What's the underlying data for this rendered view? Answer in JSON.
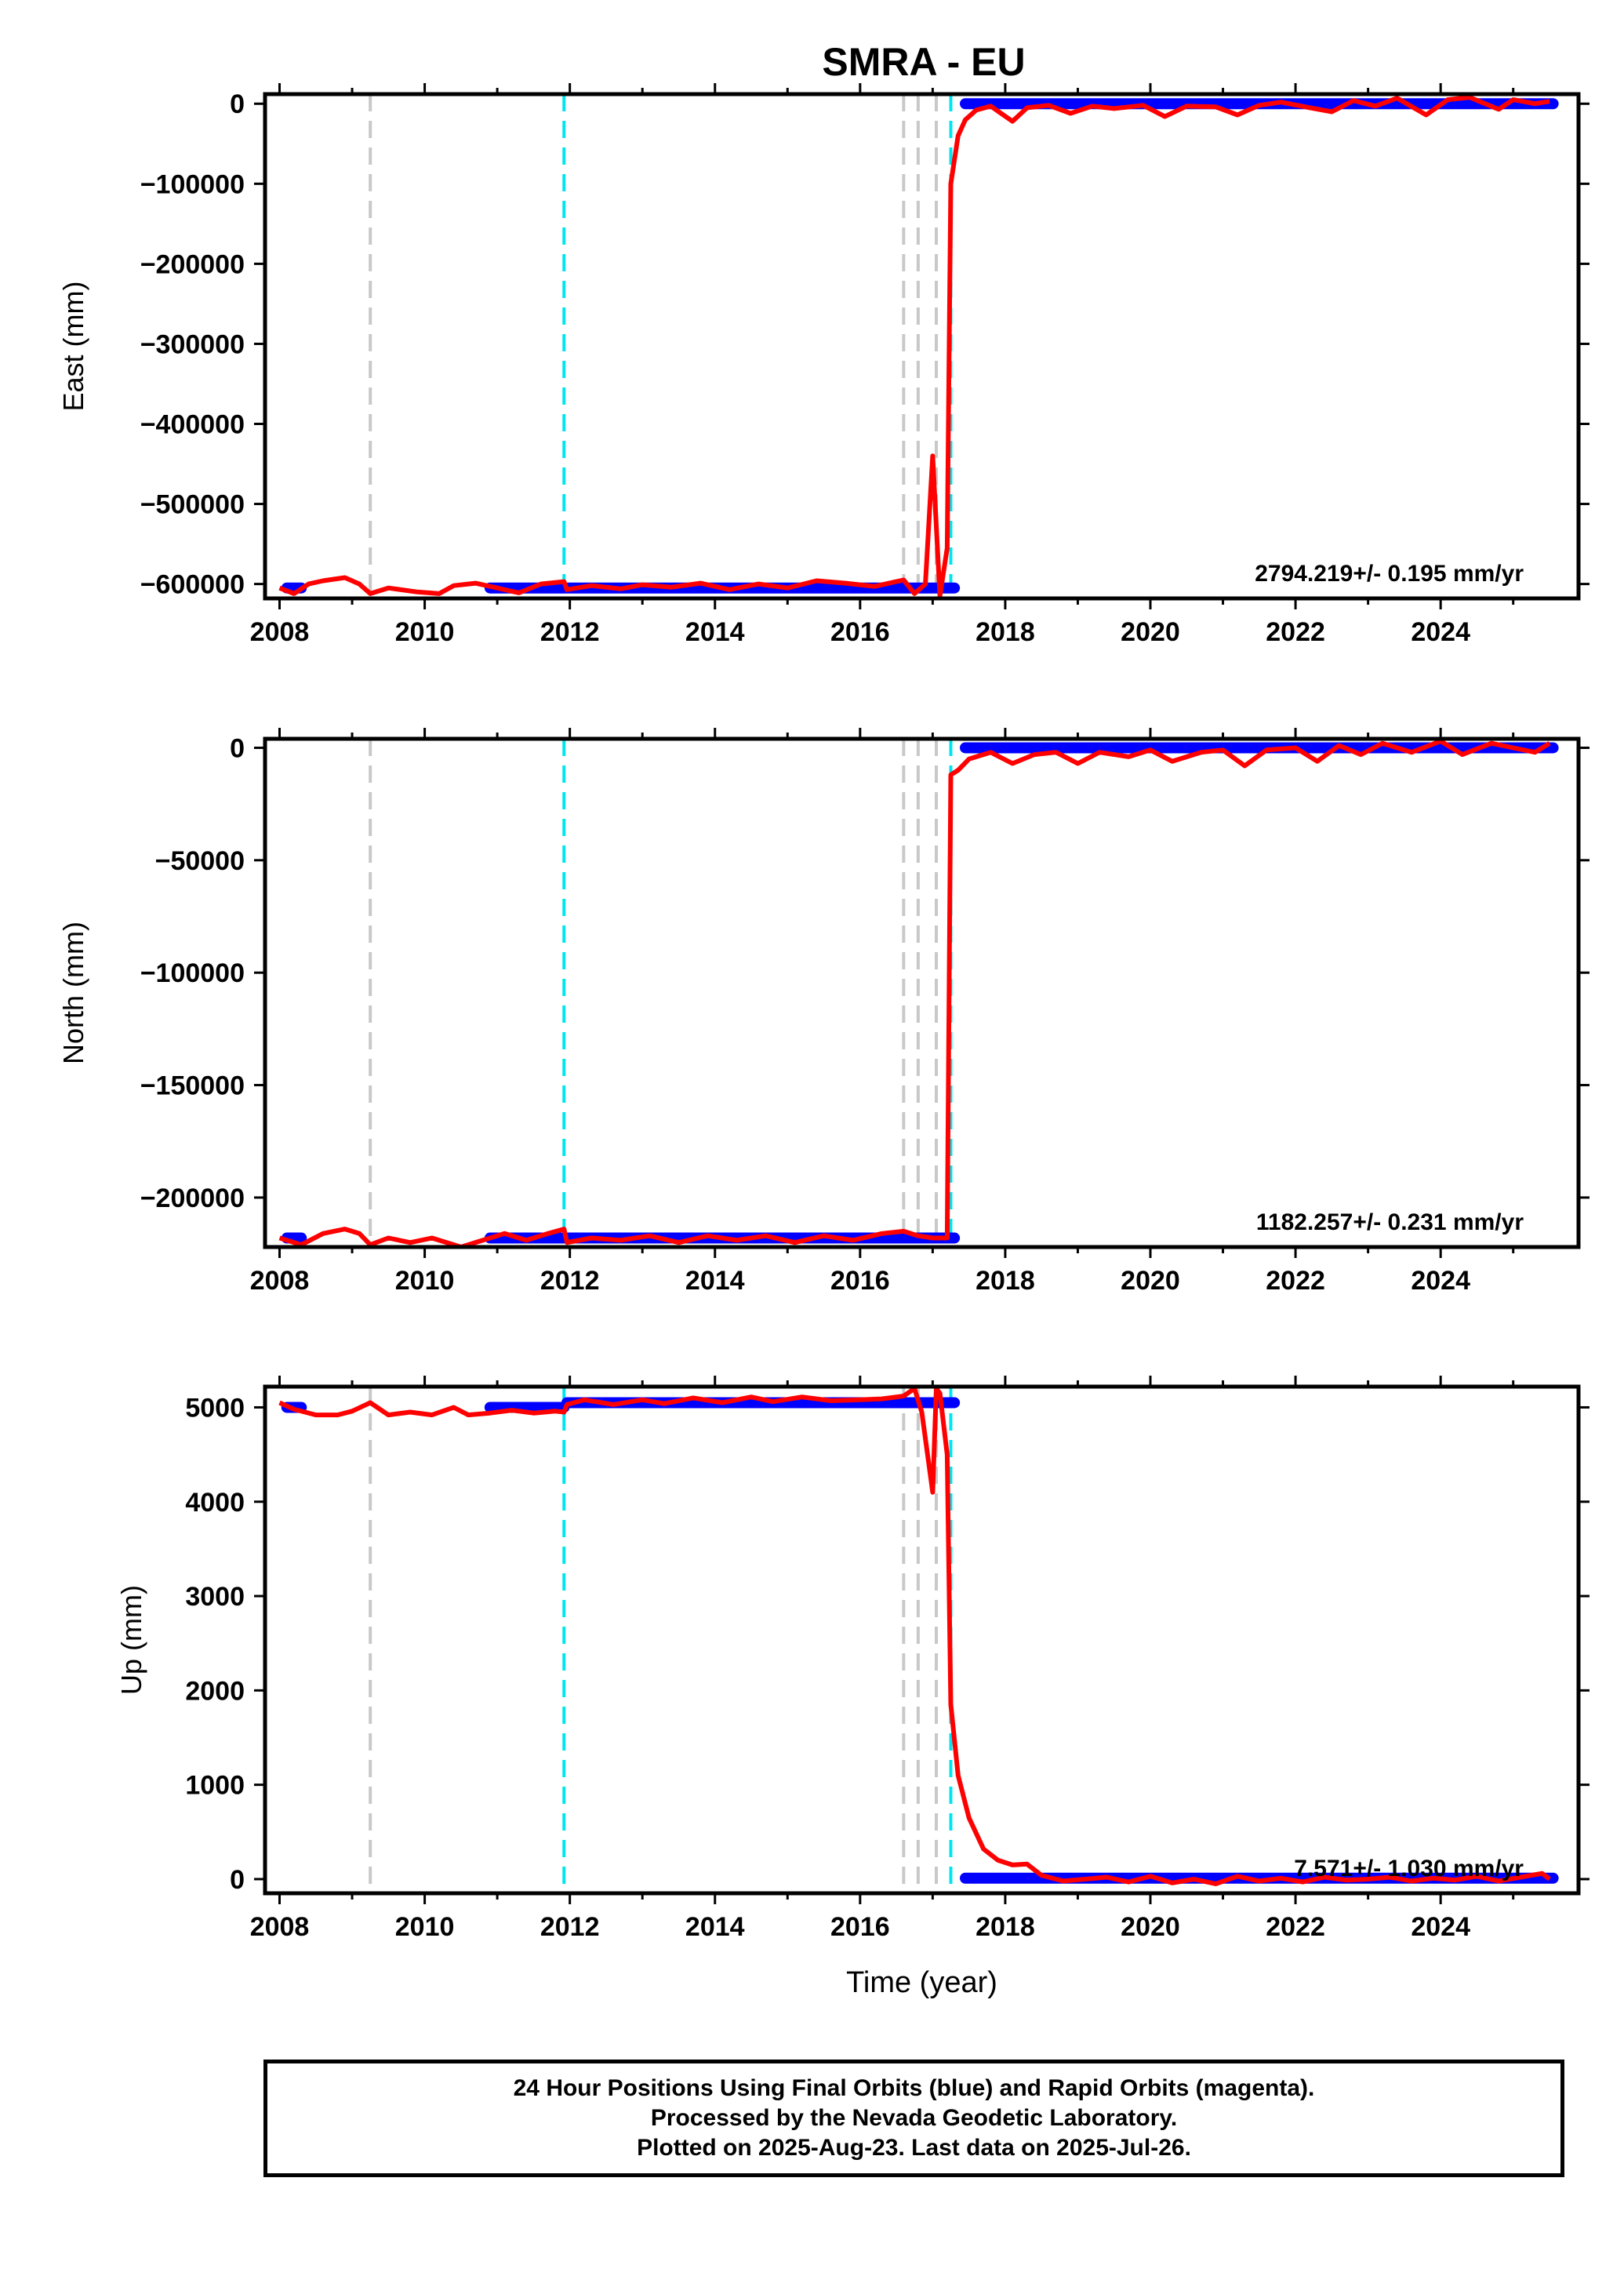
{
  "title": "SMRA - EU",
  "footer": {
    "line1": "24 Hour Positions Using Final Orbits (blue) and Rapid Orbits (magenta).",
    "line2": "Processed by the Nevada Geodetic Laboratory.",
    "line3": "Plotted on 2025-Aug-23. Last data on 2025-Jul-26."
  },
  "chart_data": [
    {
      "type": "scatter",
      "title": "SMRA - EU",
      "xlabel": "",
      "ylabel": "East (mm)",
      "xlim": [
        2007.8,
        2025.9
      ],
      "ylim": [
        -618000,
        12000
      ],
      "xticks": [
        2008,
        2010,
        2012,
        2014,
        2016,
        2018,
        2020,
        2022,
        2024
      ],
      "yticks": [
        0,
        -100000,
        -200000,
        -300000,
        -400000,
        -500000,
        -600000
      ],
      "yticklabels": [
        "0",
        "−100000",
        "−200000",
        "−300000",
        "−400000",
        "−500000",
        "−600000"
      ],
      "rate_text": "2794.219+/- 0.195 mm/yr",
      "series": [
        {
          "color": "#0000ff",
          "segments": [
            {
              "x": [
                2008.1,
                2008.3
              ],
              "y": [
                -605000,
                -605000
              ]
            },
            {
              "x": [
                2010.9,
                2017.3
              ],
              "y": [
                -605000,
                -605000
              ]
            },
            {
              "x": [
                2017.45,
                2025.55
              ],
              "y": [
                0,
                0
              ]
            }
          ]
        },
        {
          "color": "#ff0000",
          "x": [
            2008.0,
            2008.2,
            2008.4,
            2008.6,
            2008.9,
            2009.1,
            2009.25,
            2009.5,
            2009.9,
            2010.2,
            2010.4,
            2010.7,
            2011.0,
            2011.3,
            2011.6,
            2011.92,
            2011.96,
            2012.3,
            2012.7,
            2013.0,
            2013.4,
            2013.8,
            2014.2,
            2014.6,
            2015.0,
            2015.4,
            2015.8,
            2016.2,
            2016.6,
            2016.75,
            2016.9,
            2017.0,
            2017.1,
            2017.2,
            2017.25,
            2017.35,
            2017.45,
            2017.6,
            2017.8,
            2018.1,
            2018.3,
            2018.6,
            2018.9,
            2019.2,
            2019.5,
            2019.9,
            2020.2,
            2020.5,
            2020.9,
            2021.2,
            2021.5,
            2021.8,
            2022.2,
            2022.5,
            2022.8,
            2023.1,
            2023.4,
            2023.8,
            2024.1,
            2024.4,
            2024.8,
            2025.0,
            2025.3,
            2025.5
          ],
          "y": [
            -605000,
            -612000,
            -600000,
            -596000,
            -592000,
            -600000,
            -612000,
            -605000,
            -610000,
            -612000,
            -602000,
            -599000,
            -605000,
            -611000,
            -600000,
            -597000,
            -607000,
            -602000,
            -606000,
            -601000,
            -604000,
            -599000,
            -607000,
            -600000,
            -605000,
            -596000,
            -599000,
            -603000,
            -595000,
            -612000,
            -600000,
            -440000,
            -615000,
            -555000,
            -100000,
            -40000,
            -20000,
            -8000,
            -3000,
            -22000,
            -5000,
            -2000,
            -12000,
            -3000,
            -6000,
            -2000,
            -16000,
            -3000,
            -4000,
            -14000,
            -2000,
            2000,
            -5000,
            -10000,
            4000,
            -3000,
            7000,
            -14000,
            5000,
            8000,
            -7000,
            5000,
            0,
            3000
          ]
        }
      ],
      "vlines_gray": [
        2009.25,
        2016.6,
        2016.8,
        2017.05
      ],
      "vlines_cyan": [
        2011.92,
        2017.25
      ]
    },
    {
      "type": "scatter",
      "xlabel": "",
      "ylabel": "North (mm)",
      "xlim": [
        2007.8,
        2025.9
      ],
      "ylim": [
        -222000,
        4000
      ],
      "xticks": [
        2008,
        2010,
        2012,
        2014,
        2016,
        2018,
        2020,
        2022,
        2024
      ],
      "yticks": [
        0,
        -50000,
        -100000,
        -150000,
        -200000
      ],
      "yticklabels": [
        "0",
        "−50000",
        "−100000",
        "−150000",
        "−200000"
      ],
      "rate_text": "1182.257+/- 0.231 mm/yr",
      "series": [
        {
          "color": "#0000ff",
          "segments": [
            {
              "x": [
                2008.1,
                2008.3
              ],
              "y": [
                -218000,
                -218000
              ]
            },
            {
              "x": [
                2010.9,
                2017.3
              ],
              "y": [
                -218000,
                -218000
              ]
            },
            {
              "x": [
                2017.45,
                2025.55
              ],
              "y": [
                0,
                0
              ]
            }
          ]
        },
        {
          "color": "#ff0000",
          "x": [
            2008.0,
            2008.3,
            2008.6,
            2008.9,
            2009.1,
            2009.25,
            2009.5,
            2009.8,
            2010.1,
            2010.5,
            2010.8,
            2011.1,
            2011.4,
            2011.7,
            2011.92,
            2011.96,
            2012.3,
            2012.7,
            2013.1,
            2013.5,
            2013.9,
            2014.3,
            2014.7,
            2015.1,
            2015.5,
            2015.9,
            2016.3,
            2016.6,
            2016.8,
            2017.0,
            2017.2,
            2017.25,
            2017.35,
            2017.5,
            2017.8,
            2018.1,
            2018.4,
            2018.7,
            2019.0,
            2019.3,
            2019.7,
            2020.0,
            2020.3,
            2020.7,
            2021.0,
            2021.3,
            2021.6,
            2022.0,
            2022.3,
            2022.6,
            2022.9,
            2023.2,
            2023.6,
            2024.0,
            2024.3,
            2024.7,
            2025.0,
            2025.3,
            2025.5
          ],
          "y": [
            -218000,
            -221000,
            -216000,
            -214000,
            -216000,
            -221000,
            -218000,
            -220000,
            -218000,
            -222000,
            -219000,
            -216000,
            -219000,
            -216000,
            -214000,
            -220000,
            -218000,
            -219000,
            -217000,
            -220000,
            -217000,
            -219000,
            -217000,
            -220000,
            -217000,
            -219000,
            -216000,
            -215000,
            -217000,
            -218000,
            -218000,
            -12000,
            -10000,
            -5000,
            -2000,
            -7000,
            -3000,
            -2000,
            -7000,
            -2000,
            -4000,
            -1000,
            -6000,
            -2000,
            -1000,
            -8000,
            -1000,
            0,
            -6000,
            1000,
            -3000,
            2000,
            -2000,
            3000,
            -3000,
            2000,
            0,
            -2000,
            2000
          ]
        }
      ],
      "vlines_gray": [
        2009.25,
        2016.6,
        2016.8,
        2017.05
      ],
      "vlines_cyan": [
        2011.92,
        2017.25
      ]
    },
    {
      "type": "scatter",
      "xlabel": "Time (year)",
      "ylabel": "Up (mm)",
      "xlim": [
        2007.8,
        2025.9
      ],
      "ylim": [
        -150,
        5220
      ],
      "xticks": [
        2008,
        2010,
        2012,
        2014,
        2016,
        2018,
        2020,
        2022,
        2024
      ],
      "yticks": [
        0,
        1000,
        2000,
        3000,
        4000,
        5000
      ],
      "yticklabels": [
        "0",
        "1000",
        "2000",
        "3000",
        "4000",
        "5000"
      ],
      "rate_text": "7.571+/- 1.030 mm/yr",
      "series": [
        {
          "color": "#0000ff",
          "segments": [
            {
              "x": [
                2008.1,
                2008.3
              ],
              "y": [
                5000,
                5000
              ]
            },
            {
              "x": [
                2010.9,
                2011.92
              ],
              "y": [
                5000,
                5000
              ]
            },
            {
              "x": [
                2011.96,
                2017.3
              ],
              "y": [
                5050,
                5050
              ]
            },
            {
              "x": [
                2017.45,
                2025.55
              ],
              "y": [
                10,
                10
              ]
            }
          ]
        },
        {
          "color": "#ff0000",
          "x": [
            2008.0,
            2008.2,
            2008.5,
            2008.8,
            2009.0,
            2009.25,
            2009.5,
            2009.8,
            2010.1,
            2010.4,
            2010.6,
            2010.9,
            2011.2,
            2011.5,
            2011.8,
            2011.92,
            2011.96,
            2012.2,
            2012.6,
            2013.0,
            2013.3,
            2013.7,
            2014.1,
            2014.5,
            2014.8,
            2015.2,
            2015.6,
            2016.0,
            2016.3,
            2016.6,
            2016.75,
            2016.85,
            2017.0,
            2017.05,
            2017.1,
            2017.2,
            2017.25,
            2017.35,
            2017.5,
            2017.7,
            2017.9,
            2018.1,
            2018.3,
            2018.5,
            2018.8,
            2019.1,
            2019.4,
            2019.7,
            2020.0,
            2020.3,
            2020.6,
            2020.9,
            2021.2,
            2021.5,
            2021.8,
            2022.1,
            2022.4,
            2022.7,
            2023.0,
            2023.3,
            2023.6,
            2023.9,
            2024.2,
            2024.5,
            2024.8,
            2025.1,
            2025.4,
            2025.5
          ],
          "y": [
            5050,
            4980,
            4920,
            4920,
            4960,
            5050,
            4920,
            4950,
            4920,
            5000,
            4920,
            4940,
            4970,
            4940,
            4960,
            4950,
            5030,
            5080,
            5030,
            5080,
            5040,
            5100,
            5050,
            5110,
            5060,
            5110,
            5070,
            5080,
            5090,
            5120,
            5200,
            4950,
            4100,
            5200,
            5150,
            4500,
            1850,
            1100,
            650,
            320,
            200,
            150,
            160,
            40,
            -20,
            0,
            20,
            -30,
            30,
            -40,
            0,
            -50,
            30,
            -20,
            10,
            -30,
            20,
            -10,
            0,
            20,
            -20,
            10,
            -10,
            30,
            -20,
            20,
            60,
            0
          ]
        }
      ],
      "vlines_gray": [
        2009.25,
        2016.6,
        2016.8,
        2017.05
      ],
      "vlines_cyan": [
        2011.92,
        2017.25
      ]
    }
  ]
}
